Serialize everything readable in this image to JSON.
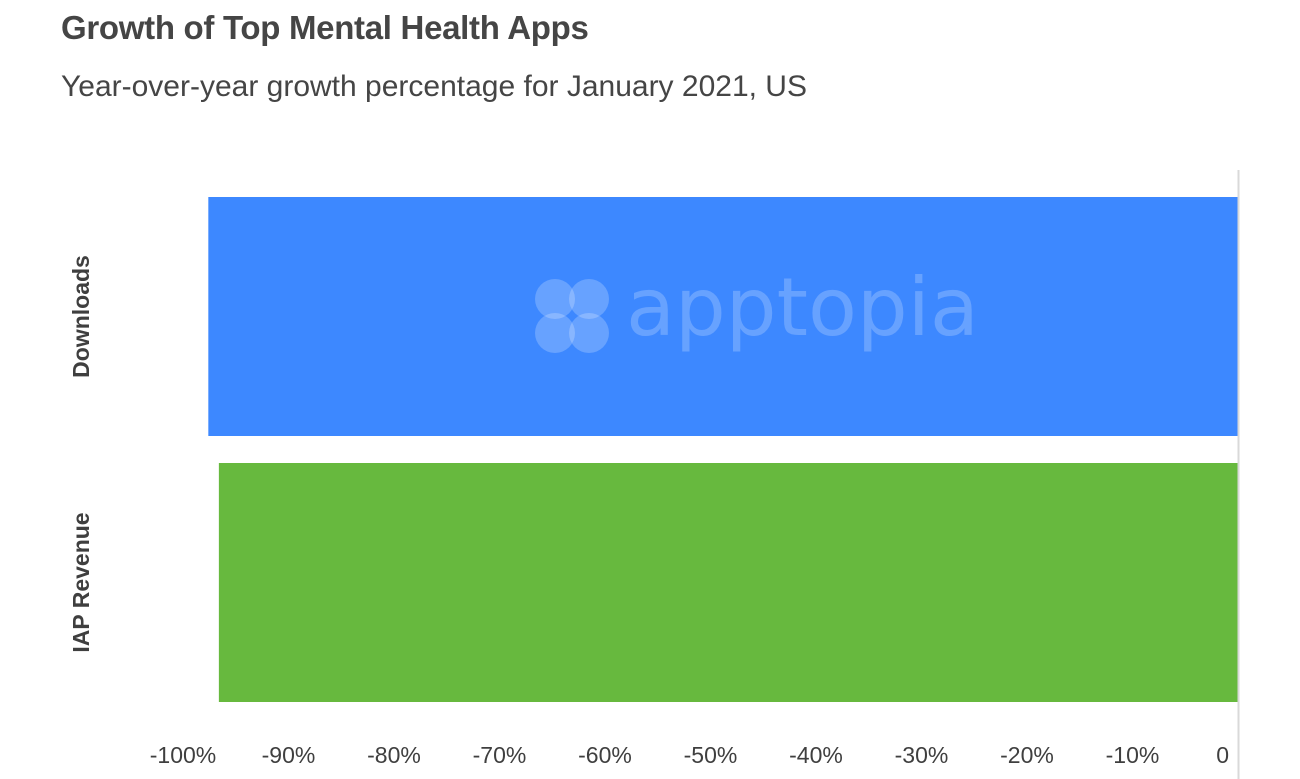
{
  "chart_data": {
    "type": "bar",
    "orientation": "horizontal",
    "title": "Growth of Top Mental Health Apps",
    "subtitle": "Year-over-year growth percentage for January 2021, US",
    "categories": [
      "Downloads",
      "IAP Revenue"
    ],
    "values": [
      -97.6,
      -96.6
    ],
    "colors": [
      "#3d88ff",
      "#67b93e"
    ],
    "xlim": [
      -100,
      0
    ],
    "x_ticks": [
      -100,
      -90,
      -80,
      -70,
      -60,
      -50,
      -40,
      -30,
      -20,
      -10,
      0
    ],
    "x_tick_labels": [
      "-100%",
      "-90%",
      "-80%",
      "-70%",
      "-60%",
      "-50%",
      "-40%",
      "-30%",
      "-20%",
      "-10%",
      "0"
    ],
    "xlabel": "",
    "ylabel": "",
    "grid": false,
    "legend": "none"
  },
  "watermark": {
    "text": "apptopia",
    "icon": "apptopia-logo-icon"
  }
}
